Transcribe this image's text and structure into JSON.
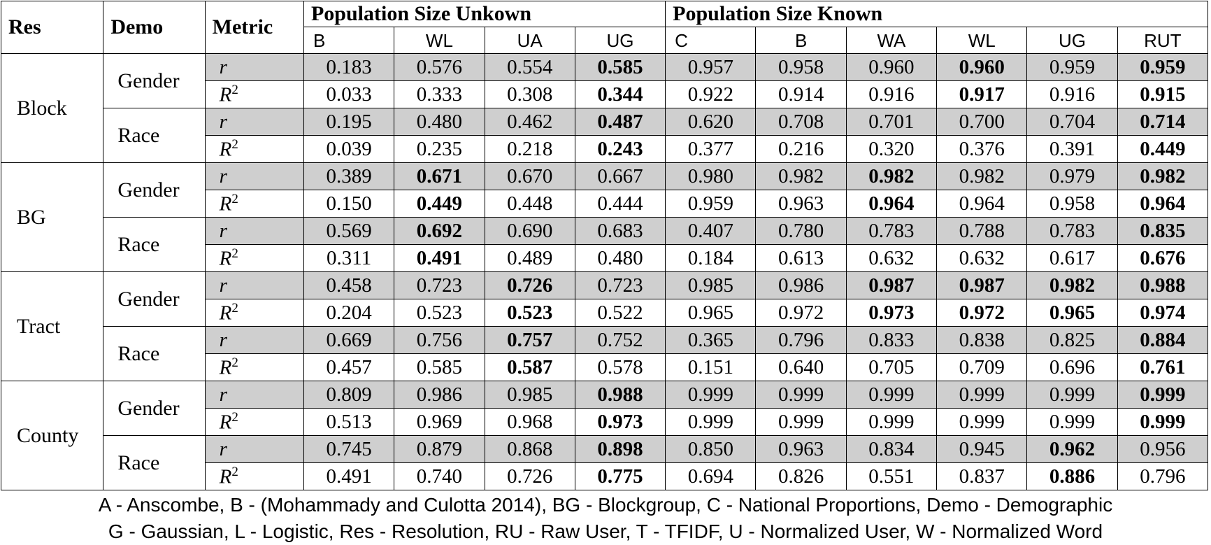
{
  "headers": {
    "res": "Res",
    "demo": "Demo",
    "metric": "Metric",
    "group_unknown": "Population Size Unkown",
    "group_known": "Population Size Known",
    "unknown_cols": [
      "B",
      "WL",
      "UA",
      "UG"
    ],
    "known_cols": [
      "C",
      "B",
      "WA",
      "WL",
      "UG",
      "RUT"
    ]
  },
  "metric_labels": {
    "r": "r",
    "R2": "R",
    "R2_sup": "2"
  },
  "blocks": [
    {
      "res": "Block",
      "demos": [
        {
          "demo": "Gender",
          "rows": [
            {
              "metric": "r",
              "values": [
                "0.183",
                "0.576",
                "0.554",
                "0.585",
                "0.957",
                "0.958",
                "0.960",
                "0.960",
                "0.959",
                "0.959"
              ],
              "bold": [
                3,
                7,
                9
              ]
            },
            {
              "metric": "R2",
              "values": [
                "0.033",
                "0.333",
                "0.308",
                "0.344",
                "0.922",
                "0.914",
                "0.916",
                "0.917",
                "0.916",
                "0.915"
              ],
              "bold": [
                3,
                7,
                9
              ]
            }
          ]
        },
        {
          "demo": "Race",
          "rows": [
            {
              "metric": "r",
              "values": [
                "0.195",
                "0.480",
                "0.462",
                "0.487",
                "0.620",
                "0.708",
                "0.701",
                "0.700",
                "0.704",
                "0.714"
              ],
              "bold": [
                3,
                9
              ]
            },
            {
              "metric": "R2",
              "values": [
                "0.039",
                "0.235",
                "0.218",
                "0.243",
                "0.377",
                "0.216",
                "0.320",
                "0.376",
                "0.391",
                "0.449"
              ],
              "bold": [
                3,
                9
              ]
            }
          ]
        }
      ]
    },
    {
      "res": "BG",
      "demos": [
        {
          "demo": "Gender",
          "rows": [
            {
              "metric": "r",
              "values": [
                "0.389",
                "0.671",
                "0.670",
                "0.667",
                "0.980",
                "0.982",
                "0.982",
                "0.982",
                "0.979",
                "0.982"
              ],
              "bold": [
                1,
                6,
                9
              ]
            },
            {
              "metric": "R2",
              "values": [
                "0.150",
                "0.449",
                "0.448",
                "0.444",
                "0.959",
                "0.963",
                "0.964",
                "0.964",
                "0.958",
                "0.964"
              ],
              "bold": [
                1,
                6,
                9
              ]
            }
          ]
        },
        {
          "demo": "Race",
          "rows": [
            {
              "metric": "r",
              "values": [
                "0.569",
                "0.692",
                "0.690",
                "0.683",
                "0.407",
                "0.780",
                "0.783",
                "0.788",
                "0.783",
                "0.835"
              ],
              "bold": [
                1,
                9
              ]
            },
            {
              "metric": "R2",
              "values": [
                "0.311",
                "0.491",
                "0.489",
                "0.480",
                "0.184",
                "0.613",
                "0.632",
                "0.632",
                "0.617",
                "0.676"
              ],
              "bold": [
                1,
                9
              ]
            }
          ]
        }
      ]
    },
    {
      "res": "Tract",
      "demos": [
        {
          "demo": "Gender",
          "rows": [
            {
              "metric": "r",
              "values": [
                "0.458",
                "0.723",
                "0.726",
                "0.723",
                "0.985",
                "0.986",
                "0.987",
                "0.987",
                "0.982",
                "0.988"
              ],
              "bold": [
                2,
                6,
                7,
                8,
                9
              ]
            },
            {
              "metric": "R2",
              "values": [
                "0.204",
                "0.523",
                "0.523",
                "0.522",
                "0.965",
                "0.972",
                "0.973",
                "0.972",
                "0.965",
                "0.974"
              ],
              "bold": [
                2,
                6,
                7,
                8,
                9
              ]
            }
          ]
        },
        {
          "demo": "Race",
          "rows": [
            {
              "metric": "r",
              "values": [
                "0.669",
                "0.756",
                "0.757",
                "0.752",
                "0.365",
                "0.796",
                "0.833",
                "0.838",
                "0.825",
                "0.884"
              ],
              "bold": [
                2,
                9
              ]
            },
            {
              "metric": "R2",
              "values": [
                "0.457",
                "0.585",
                "0.587",
                "0.578",
                "0.151",
                "0.640",
                "0.705",
                "0.709",
                "0.696",
                "0.761"
              ],
              "bold": [
                2,
                9
              ]
            }
          ]
        }
      ]
    },
    {
      "res": "County",
      "demos": [
        {
          "demo": "Gender",
          "rows": [
            {
              "metric": "r",
              "values": [
                "0.809",
                "0.986",
                "0.985",
                "0.988",
                "0.999",
                "0.999",
                "0.999",
                "0.999",
                "0.999",
                "0.999"
              ],
              "bold": [
                3,
                9
              ]
            },
            {
              "metric": "R2",
              "values": [
                "0.513",
                "0.969",
                "0.968",
                "0.973",
                "0.999",
                "0.999",
                "0.999",
                "0.999",
                "0.999",
                "0.999"
              ],
              "bold": [
                3,
                9
              ]
            }
          ]
        },
        {
          "demo": "Race",
          "rows": [
            {
              "metric": "r",
              "values": [
                "0.745",
                "0.879",
                "0.868",
                "0.898",
                "0.850",
                "0.963",
                "0.834",
                "0.945",
                "0.962",
                "0.956"
              ],
              "bold": [
                3,
                8
              ]
            },
            {
              "metric": "R2",
              "values": [
                "0.491",
                "0.740",
                "0.726",
                "0.775",
                "0.694",
                "0.826",
                "0.551",
                "0.837",
                "0.886",
                "0.796"
              ],
              "bold": [
                3,
                8
              ]
            }
          ]
        }
      ]
    }
  ],
  "notes": [
    "A - Anscombe, B - (Mohammady and Culotta 2014), BG - Blockgroup, C - National Proportions, Demo - Demographic",
    "G - Gaussian, L - Logistic, Res - Resolution, RU - Raw User, T - TFIDF, U - Normalized User, W - Normalized Word"
  ]
}
